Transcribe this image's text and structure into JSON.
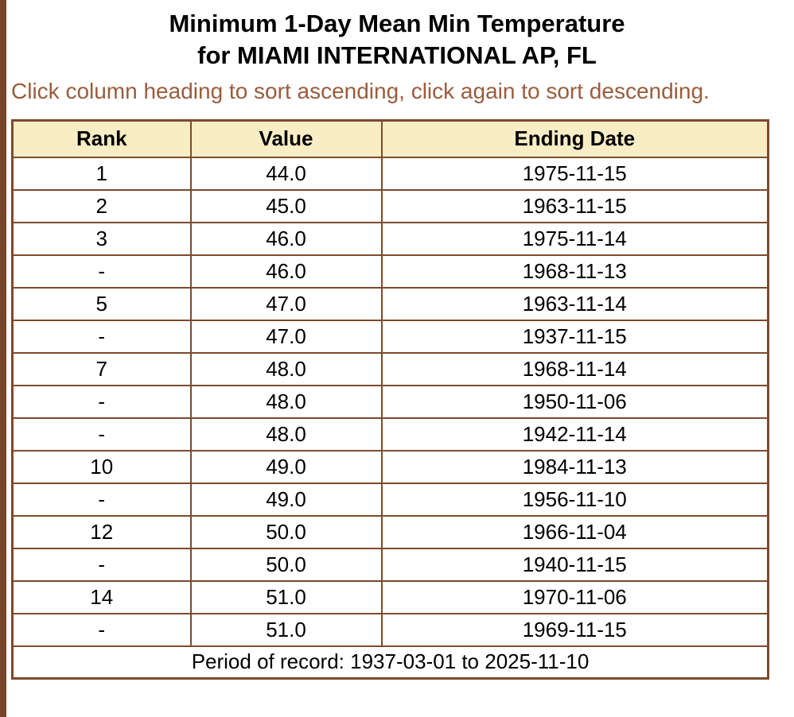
{
  "header": {
    "title_line1": "Minimum 1-Day Mean Min Temperature",
    "title_line2": "for MIAMI INTERNATIONAL AP, FL",
    "sort_hint": "Click column heading to sort ascending, click again to sort descending."
  },
  "table": {
    "columns": [
      "Rank",
      "Value",
      "Ending Date"
    ],
    "rows": [
      {
        "rank": "1",
        "value": "44.0",
        "date": "1975-11-15"
      },
      {
        "rank": "2",
        "value": "45.0",
        "date": "1963-11-15"
      },
      {
        "rank": "3",
        "value": "46.0",
        "date": "1975-11-14"
      },
      {
        "rank": "-",
        "value": "46.0",
        "date": "1968-11-13"
      },
      {
        "rank": "5",
        "value": "47.0",
        "date": "1963-11-14"
      },
      {
        "rank": "-",
        "value": "47.0",
        "date": "1937-11-15"
      },
      {
        "rank": "7",
        "value": "48.0",
        "date": "1968-11-14"
      },
      {
        "rank": "-",
        "value": "48.0",
        "date": "1950-11-06"
      },
      {
        "rank": "-",
        "value": "48.0",
        "date": "1942-11-14"
      },
      {
        "rank": "10",
        "value": "49.0",
        "date": "1984-11-13"
      },
      {
        "rank": "-",
        "value": "49.0",
        "date": "1956-11-10"
      },
      {
        "rank": "12",
        "value": "50.0",
        "date": "1966-11-04"
      },
      {
        "rank": "-",
        "value": "50.0",
        "date": "1940-11-15"
      },
      {
        "rank": "14",
        "value": "51.0",
        "date": "1970-11-06"
      },
      {
        "rank": "-",
        "value": "51.0",
        "date": "1969-11-15"
      }
    ],
    "footer": "Period of record: 1937-03-01 to 2025-11-10"
  },
  "colors": {
    "left_bar": "#74452a",
    "table_border": "#7d4a2c",
    "header_bg": "#f9edc5",
    "sort_hint_text": "#9b5c3c",
    "title_text": "#000000"
  }
}
